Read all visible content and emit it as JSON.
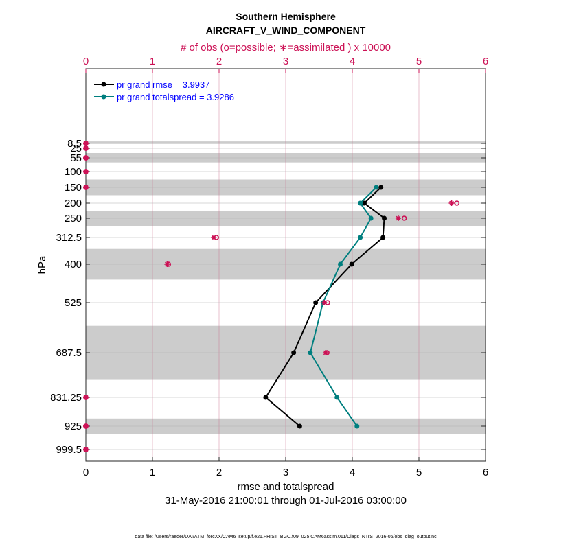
{
  "chart_data": {
    "type": "line",
    "title": "Southern Hemisphere",
    "subtitle": "AIRCRAFT_V_WIND_COMPONENT",
    "top_axis_label": "# of obs (o=possible; ∗=assimilated ) x 10000",
    "xlabel": "rmse and totalspread",
    "ylabel": "hPa",
    "date_range": "31-May-2016 21:00:01 through 01-Jul-2016 03:00:00",
    "footnote": "data file: /Users/raeder/DAI/ATM_forcXX/CAM6_setup/f.e21.FHIST_BGC.f09_025.CAM6assim.011/Diags_NTrS_2016-06/obs_diag_output.nc",
    "xlim": [
      0,
      6
    ],
    "xticks": [
      "0",
      "1",
      "2",
      "3",
      "4",
      "5",
      "6"
    ],
    "top_xticks": [
      "0",
      "1",
      "2",
      "3",
      "4",
      "5",
      "6"
    ],
    "levels": [
      8.5,
      25,
      55,
      100,
      150,
      200,
      250,
      312.5,
      400,
      525,
      687.5,
      831.25,
      925,
      999.5
    ],
    "level_labels": [
      "8.5",
      "25",
      "55",
      "100",
      "150",
      "200",
      "250",
      "312.5",
      "400",
      "525",
      "687.5",
      "831.25",
      "925",
      "999.5"
    ],
    "legend_position": "top-left",
    "colors": {
      "rmse": "#000000",
      "spread": "#007f7f",
      "obs": "#cc1155",
      "legend_text": "#0000ff",
      "band": "#cccccc"
    },
    "series": [
      {
        "name": "pr grand rmse = 3.9937",
        "levels": [
          150,
          200,
          250,
          312.5,
          400,
          525,
          687.5,
          831.25,
          925
        ],
        "values": [
          4.43,
          4.18,
          4.48,
          4.46,
          3.99,
          3.45,
          3.12,
          2.7,
          3.21
        ]
      },
      {
        "name": "pr grand totalspread = 3.9286",
        "levels": [
          150,
          200,
          250,
          312.5,
          400,
          525,
          687.5,
          831.25,
          925
        ],
        "values": [
          4.36,
          4.12,
          4.28,
          4.12,
          3.82,
          3.56,
          3.37,
          3.77,
          4.07
        ]
      }
    ],
    "obs_possible": {
      "levels": [
        8.5,
        25,
        55,
        100,
        150,
        200,
        250,
        312.5,
        400,
        525,
        687.5,
        831.25,
        925,
        999.5
      ],
      "values": [
        0,
        0,
        0,
        0,
        0,
        5.57,
        4.78,
        1.96,
        1.24,
        3.63,
        3.62,
        0,
        0,
        0
      ]
    },
    "obs_assimilated": {
      "levels": [
        8.5,
        25,
        55,
        100,
        150,
        200,
        250,
        312.5,
        400,
        525,
        687.5,
        831.25,
        925,
        999.5
      ],
      "values": [
        0,
        0,
        0,
        0,
        0,
        5.49,
        4.69,
        1.92,
        1.22,
        3.58,
        3.6,
        0,
        0,
        0
      ]
    },
    "shaded_bands": [
      [
        5,
        10
      ],
      [
        40,
        70
      ],
      [
        125,
        175
      ],
      [
        225,
        275
      ],
      [
        350,
        450
      ],
      [
        600,
        775
      ],
      [
        900,
        950
      ]
    ]
  }
}
